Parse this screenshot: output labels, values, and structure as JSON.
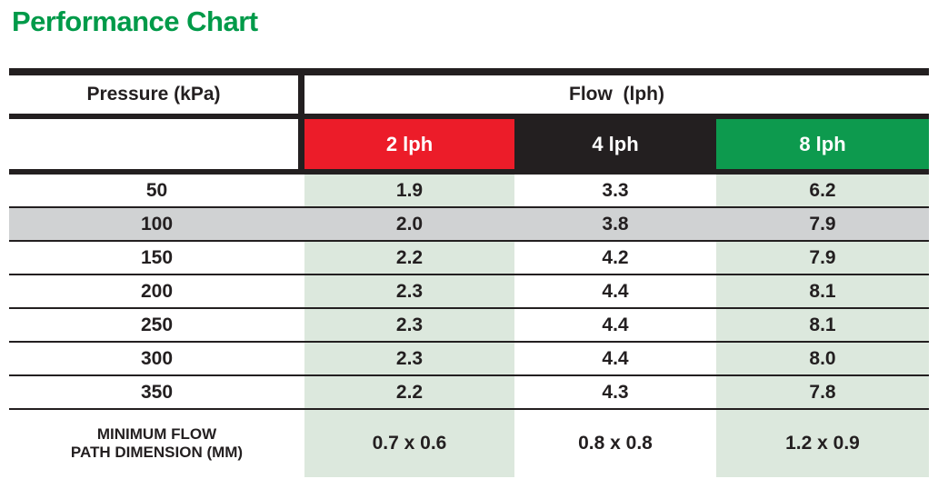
{
  "page": {
    "title": "Performance Chart"
  },
  "colors": {
    "title_green": "#009A49",
    "bar_black": "#231F20",
    "header_red": "#EC1C29",
    "header_black": "#231F20",
    "header_green": "#0D9A4E",
    "cell_light_green": "#DCE8DD",
    "highlight_grey": "#D0D2D3",
    "text_black": "#231F20"
  },
  "table": {
    "col_headers": {
      "pressure": "Pressure (kPa)",
      "flow": "Flow  (lph)"
    },
    "flow_columns": [
      {
        "label": "2 lph",
        "color": "#EC1C29"
      },
      {
        "label": "4 lph",
        "color": "#231F20"
      },
      {
        "label": "8 lph",
        "color": "#0D9A4E"
      }
    ],
    "rows": [
      {
        "pressure": "50",
        "v2": "1.9",
        "v4": "3.3",
        "v8": "6.2",
        "highlight": false
      },
      {
        "pressure": "100",
        "v2": "2.0",
        "v4": "3.8",
        "v8": "7.9",
        "highlight": true
      },
      {
        "pressure": "150",
        "v2": "2.2",
        "v4": "4.2",
        "v8": "7.9",
        "highlight": false
      },
      {
        "pressure": "200",
        "v2": "2.3",
        "v4": "4.4",
        "v8": "8.1",
        "highlight": false
      },
      {
        "pressure": "250",
        "v2": "2.3",
        "v4": "4.4",
        "v8": "8.1",
        "highlight": false
      },
      {
        "pressure": "300",
        "v2": "2.3",
        "v4": "4.4",
        "v8": "8.0",
        "highlight": false
      },
      {
        "pressure": "350",
        "v2": "2.2",
        "v4": "4.3",
        "v8": "7.8",
        "highlight": false
      }
    ],
    "footer": {
      "label": "MINIMUM FLOW\nPATH DIMENSION (MM)",
      "v2": "0.7 x 0.6",
      "v4": "0.8 x 0.8",
      "v8": "1.2 x 0.9"
    }
  },
  "chart_data": {
    "type": "table",
    "title": "Performance Chart",
    "xlabel": "Pressure (kPa)",
    "ylabel": "Flow (lph)",
    "x": [
      50,
      100,
      150,
      200,
      250,
      300,
      350
    ],
    "series": [
      {
        "name": "2 lph",
        "values": [
          1.9,
          2.0,
          2.2,
          2.3,
          2.3,
          2.3,
          2.2
        ]
      },
      {
        "name": "4 lph",
        "values": [
          3.3,
          3.8,
          4.2,
          4.4,
          4.4,
          4.4,
          4.3
        ]
      },
      {
        "name": "8 lph",
        "values": [
          6.2,
          7.9,
          7.9,
          8.1,
          8.1,
          8.0,
          7.8
        ]
      }
    ],
    "highlighted_row_pressure": 100,
    "minimum_flow_path_dimension_mm": [
      "0.7 x 0.6",
      "0.8 x 0.8",
      "1.2 x 0.9"
    ]
  }
}
